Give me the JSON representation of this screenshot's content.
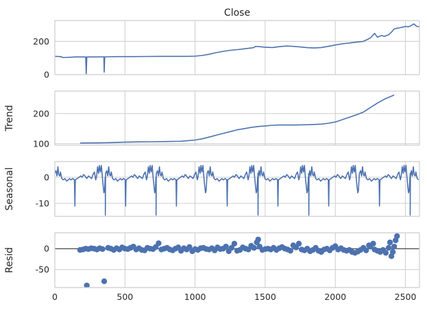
{
  "chart_data": {
    "type": "line",
    "title": "Close",
    "xlim": [
      0,
      2600
    ],
    "x_ticks": [
      0,
      500,
      1000,
      1500,
      2000,
      2500
    ],
    "line_color": "#4c72b0",
    "frame_color": "#cccccc",
    "grid": true,
    "panels": [
      {
        "ylabel": "",
        "ylim": [
          0,
          325
        ],
        "y_ticks": [
          0,
          200
        ],
        "series": {
          "type": "line",
          "points": [
            [
              0,
              110
            ],
            [
              40,
              108
            ],
            [
              60,
              103
            ],
            [
              100,
              104
            ],
            [
              150,
              106
            ],
            [
              220,
              106
            ],
            [
              224,
              5
            ],
            [
              228,
              106
            ],
            [
              300,
              106
            ],
            [
              350,
              107
            ],
            [
              352,
              15
            ],
            [
              356,
              107
            ],
            [
              450,
              108
            ],
            [
              550,
              108
            ],
            [
              650,
              109
            ],
            [
              750,
              110
            ],
            [
              850,
              110
            ],
            [
              950,
              110
            ],
            [
              1000,
              111
            ],
            [
              1050,
              115
            ],
            [
              1100,
              122
            ],
            [
              1150,
              132
            ],
            [
              1200,
              140
            ],
            [
              1250,
              146
            ],
            [
              1300,
              150
            ],
            [
              1350,
              155
            ],
            [
              1400,
              160
            ],
            [
              1420,
              163
            ],
            [
              1430,
              170
            ],
            [
              1500,
              165
            ],
            [
              1550,
              163
            ],
            [
              1600,
              168
            ],
            [
              1650,
              172
            ],
            [
              1700,
              170
            ],
            [
              1750,
              166
            ],
            [
              1800,
              162
            ],
            [
              1850,
              160
            ],
            [
              1900,
              163
            ],
            [
              1950,
              170
            ],
            [
              2000,
              178
            ],
            [
              2050,
              185
            ],
            [
              2100,
              190
            ],
            [
              2150,
              195
            ],
            [
              2200,
              200
            ],
            [
              2250,
              220
            ],
            [
              2280,
              248
            ],
            [
              2300,
              225
            ],
            [
              2330,
              235
            ],
            [
              2350,
              230
            ],
            [
              2380,
              240
            ],
            [
              2400,
              255
            ],
            [
              2420,
              275
            ],
            [
              2450,
              280
            ],
            [
              2480,
              285
            ],
            [
              2500,
              290
            ],
            [
              2520,
              287
            ],
            [
              2540,
              294
            ],
            [
              2560,
              305
            ],
            [
              2580,
              290
            ],
            [
              2600,
              288
            ]
          ]
        }
      },
      {
        "ylabel": "Trend",
        "ylim": [
          95,
          275
        ],
        "y_ticks": [
          100,
          200
        ],
        "series": {
          "type": "line",
          "points": [
            [
              180,
              102
            ],
            [
              300,
              102.5
            ],
            [
              400,
              103.5
            ],
            [
              500,
              105
            ],
            [
              600,
              106
            ],
            [
              700,
              106.5
            ],
            [
              800,
              107
            ],
            [
              900,
              108
            ],
            [
              950,
              110
            ],
            [
              1000,
              112
            ],
            [
              1050,
              116
            ],
            [
              1100,
              122
            ],
            [
              1150,
              128
            ],
            [
              1200,
              134
            ],
            [
              1250,
              140
            ],
            [
              1300,
              146
            ],
            [
              1350,
              150
            ],
            [
              1400,
              154
            ],
            [
              1450,
              157
            ],
            [
              1500,
              159
            ],
            [
              1550,
              161
            ],
            [
              1600,
              162
            ],
            [
              1700,
              162
            ],
            [
              1800,
              163
            ],
            [
              1900,
              165
            ],
            [
              1950,
              168
            ],
            [
              2000,
              172
            ],
            [
              2050,
              180
            ],
            [
              2100,
              188
            ],
            [
              2150,
              196
            ],
            [
              2200,
              205
            ],
            [
              2250,
              220
            ],
            [
              2300,
              235
            ],
            [
              2350,
              248
            ],
            [
              2400,
              258
            ],
            [
              2420,
              262
            ]
          ]
        }
      },
      {
        "ylabel": "Seasonal",
        "ylim": [
          -15,
          6
        ],
        "y_ticks": [
          -10,
          0
        ],
        "series": {
          "type": "line",
          "period": 362,
          "cycle": [
            [
              0,
              1.5
            ],
            [
              8,
              2.5
            ],
            [
              15,
              0.5
            ],
            [
              22,
              4.0
            ],
            [
              28,
              1.0
            ],
            [
              35,
              0.5
            ],
            [
              40,
              2.0
            ],
            [
              50,
              -0.5
            ],
            [
              60,
              -1.0
            ],
            [
              72,
              -0.5
            ],
            [
              85,
              -1.5
            ],
            [
              95,
              -1.0
            ],
            [
              105,
              -0.5
            ],
            [
              115,
              -1.0
            ],
            [
              128,
              -0.5
            ],
            [
              140,
              -1.0
            ],
            [
              143,
              -11.0
            ],
            [
              146,
              -1.0
            ],
            [
              160,
              -0.5
            ],
            [
              172,
              0.0
            ],
            [
              185,
              0.5
            ],
            [
              195,
              0.0
            ],
            [
              205,
              1.0
            ],
            [
              215,
              0.5
            ],
            [
              228,
              -0.5
            ],
            [
              240,
              0.5
            ],
            [
              252,
              0.0
            ],
            [
              262,
              -0.5
            ],
            [
              272,
              1.0
            ],
            [
              282,
              2.0
            ],
            [
              292,
              -1.0
            ],
            [
              298,
              0.5
            ],
            [
              305,
              4.0
            ],
            [
              312,
              1.5
            ],
            [
              318,
              4.5
            ],
            [
              325,
              2.0
            ],
            [
              332,
              4.5
            ],
            [
              338,
              0.5
            ],
            [
              344,
              -3.0
            ],
            [
              350,
              -6.0
            ],
            [
              355,
              -5.0
            ],
            [
              360,
              0.0
            ]
          ],
          "deep_spikes": [
            [
              360,
              -14.5
            ],
            [
              722,
              -14.5
            ],
            [
              1449,
              -14.5
            ],
            [
              1811,
              -14.5
            ],
            [
              2534,
              -14.5
            ]
          ]
        }
      },
      {
        "ylabel": "Resid",
        "ylim": [
          -93,
          38
        ],
        "y_ticks": [
          -50,
          0
        ],
        "baseline": 0,
        "series": {
          "type": "scatter",
          "points": [
            [
              180,
              -3
            ],
            [
              200,
              -2
            ],
            [
              220,
              0
            ],
            [
              240,
              -1
            ],
            [
              260,
              1
            ],
            [
              280,
              0
            ],
            [
              300,
              -2
            ],
            [
              320,
              1
            ],
            [
              340,
              -1
            ],
            [
              380,
              2
            ],
            [
              400,
              0
            ],
            [
              420,
              -3
            ],
            [
              440,
              1
            ],
            [
              460,
              -2
            ],
            [
              480,
              3
            ],
            [
              500,
              0
            ],
            [
              520,
              -1
            ],
            [
              540,
              2
            ],
            [
              560,
              5
            ],
            [
              580,
              -2
            ],
            [
              600,
              1
            ],
            [
              620,
              -3
            ],
            [
              640,
              -4
            ],
            [
              660,
              2
            ],
            [
              680,
              0
            ],
            [
              700,
              -1
            ],
            [
              720,
              4
            ],
            [
              740,
              13
            ],
            [
              760,
              -2
            ],
            [
              780,
              0
            ],
            [
              800,
              2
            ],
            [
              820,
              -2
            ],
            [
              840,
              -4
            ],
            [
              860,
              0
            ],
            [
              880,
              3
            ],
            [
              900,
              -5
            ],
            [
              920,
              1
            ],
            [
              940,
              -2
            ],
            [
              960,
              4
            ],
            [
              980,
              -6
            ],
            [
              1000,
              -1
            ],
            [
              1020,
              -3
            ],
            [
              1040,
              1
            ],
            [
              1060,
              2
            ],
            [
              1080,
              -1
            ],
            [
              1100,
              -2
            ],
            [
              1120,
              1
            ],
            [
              1140,
              -4
            ],
            [
              1160,
              3
            ],
            [
              1180,
              -1
            ],
            [
              1200,
              0
            ],
            [
              1220,
              5
            ],
            [
              1240,
              -6
            ],
            [
              1260,
              2
            ],
            [
              1280,
              12
            ],
            [
              1300,
              -5
            ],
            [
              1320,
              -3
            ],
            [
              1340,
              3
            ],
            [
              1360,
              0
            ],
            [
              1380,
              -2
            ],
            [
              1400,
              7
            ],
            [
              1420,
              2
            ],
            [
              1440,
              15
            ],
            [
              1450,
              22
            ],
            [
              1460,
              5
            ],
            [
              1480,
              -3
            ],
            [
              1500,
              -1
            ],
            [
              1520,
              0
            ],
            [
              1540,
              -2
            ],
            [
              1560,
              2
            ],
            [
              1580,
              -3
            ],
            [
              1600,
              1
            ],
            [
              1620,
              4
            ],
            [
              1640,
              0
            ],
            [
              1660,
              -2
            ],
            [
              1680,
              -5
            ],
            [
              1700,
              8
            ],
            [
              1720,
              3
            ],
            [
              1740,
              12
            ],
            [
              1760,
              -2
            ],
            [
              1780,
              -4
            ],
            [
              1800,
              0
            ],
            [
              1820,
              -6
            ],
            [
              1840,
              -3
            ],
            [
              1860,
              2
            ],
            [
              1880,
              -5
            ],
            [
              1900,
              -8
            ],
            [
              1920,
              -2
            ],
            [
              1940,
              0
            ],
            [
              1960,
              -4
            ],
            [
              1980,
              2
            ],
            [
              2000,
              6
            ],
            [
              2020,
              -2
            ],
            [
              2040,
              1
            ],
            [
              2060,
              -3
            ],
            [
              2080,
              -5
            ],
            [
              2100,
              -3
            ],
            [
              2120,
              -8
            ],
            [
              2140,
              -10
            ],
            [
              2160,
              -7
            ],
            [
              2180,
              -3
            ],
            [
              2200,
              2
            ],
            [
              2220,
              -4
            ],
            [
              2240,
              8
            ],
            [
              2250,
              5
            ],
            [
              2270,
              12
            ],
            [
              2280,
              -2
            ],
            [
              2300,
              -5
            ],
            [
              2320,
              -8
            ],
            [
              2340,
              -3
            ],
            [
              2360,
              -10
            ],
            [
              2380,
              2
            ],
            [
              2390,
              15
            ],
            [
              2400,
              -18
            ],
            [
              2410,
              -8
            ],
            [
              2420,
              5
            ],
            [
              2430,
              20
            ],
            [
              2440,
              30
            ],
            [
              228,
              -88
            ],
            [
              352,
              -78
            ]
          ]
        }
      }
    ]
  }
}
